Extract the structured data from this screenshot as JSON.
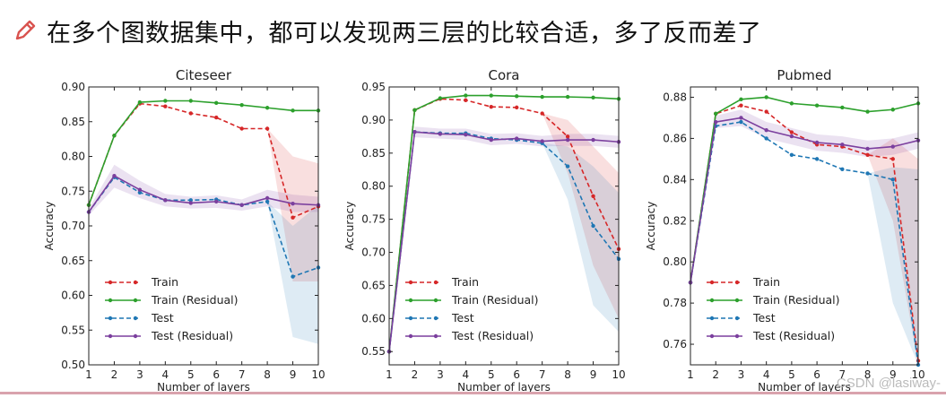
{
  "header": {
    "icon": "pencil-icon",
    "text": "在多个图数据集中，都可以发现两三层的比较合适，多了反而差了"
  },
  "watermark": "CSDN @lasiway-",
  "legend_labels": [
    "Train",
    "Train (Residual)",
    "Test",
    "Test (Residual)"
  ],
  "colors": {
    "train": "#d62728",
    "train_residual": "#2ca02c",
    "test": "#1f77b4",
    "test_residual": "#7b3f9e",
    "axis": "#222222"
  },
  "chart_data": [
    {
      "type": "line",
      "title": "Citeseer",
      "xlabel": "Number of layers",
      "ylabel": "Accuracy",
      "x": [
        1,
        2,
        3,
        4,
        5,
        6,
        7,
        8,
        9,
        10
      ],
      "xlim": [
        1,
        10
      ],
      "ylim": [
        0.5,
        0.9
      ],
      "yticks": [
        "0.50",
        "0.55",
        "0.60",
        "0.65",
        "0.70",
        "0.75",
        "0.80",
        "0.85",
        "0.90"
      ],
      "xticks": [
        "1",
        "2",
        "3",
        "4",
        "5",
        "6",
        "7",
        "8",
        "9",
        "10"
      ],
      "series": [
        {
          "name": "Train",
          "style": "dashed",
          "values": [
            0.73,
            0.83,
            0.876,
            0.872,
            0.862,
            0.856,
            0.84,
            0.84,
            0.712,
            0.728
          ]
        },
        {
          "name": "Train (Residual)",
          "style": "solid",
          "values": [
            0.73,
            0.83,
            0.878,
            0.88,
            0.88,
            0.877,
            0.874,
            0.87,
            0.866,
            0.866
          ]
        },
        {
          "name": "Test",
          "style": "dashed",
          "values": [
            0.72,
            0.77,
            0.748,
            0.737,
            0.737,
            0.738,
            0.73,
            0.735,
            0.627,
            0.64
          ]
        },
        {
          "name": "Test (Residual)",
          "style": "solid",
          "values": [
            0.72,
            0.772,
            0.752,
            0.737,
            0.733,
            0.735,
            0.73,
            0.74,
            0.732,
            0.73
          ]
        }
      ],
      "bands": [
        {
          "series": "Train",
          "x": [
            8,
            9,
            10
          ],
          "lower": [
            0.84,
            0.62,
            0.62
          ],
          "upper": [
            0.84,
            0.8,
            0.79
          ]
        },
        {
          "series": "Test",
          "x": [
            8,
            9,
            10
          ],
          "lower": [
            0.735,
            0.54,
            0.53
          ],
          "upper": [
            0.735,
            0.7,
            0.73
          ]
        },
        {
          "series": "Test (Residual)",
          "x": [
            1,
            2,
            3,
            4,
            5,
            6,
            7,
            8,
            9,
            10
          ],
          "lower": [
            0.715,
            0.755,
            0.74,
            0.728,
            0.725,
            0.726,
            0.722,
            0.728,
            0.72,
            0.72
          ],
          "upper": [
            0.725,
            0.788,
            0.765,
            0.746,
            0.742,
            0.744,
            0.738,
            0.752,
            0.745,
            0.742
          ]
        }
      ],
      "legend_position": "lower-left"
    },
    {
      "type": "line",
      "title": "Cora",
      "xlabel": "Number of layers",
      "ylabel": "Accuracy",
      "x": [
        1,
        2,
        3,
        4,
        5,
        6,
        7,
        8,
        9,
        10
      ],
      "xlim": [
        1,
        10
      ],
      "ylim": [
        0.53,
        0.95
      ],
      "yticks": [
        "0.55",
        "0.60",
        "0.65",
        "0.70",
        "0.75",
        "0.80",
        "0.85",
        "0.90",
        "0.95"
      ],
      "xticks": [
        "1",
        "2",
        "3",
        "4",
        "5",
        "6",
        "7",
        "8",
        "9",
        "10"
      ],
      "series": [
        {
          "name": "Train",
          "style": "dashed",
          "values": [
            0.55,
            0.915,
            0.932,
            0.93,
            0.92,
            0.919,
            0.91,
            0.875,
            0.785,
            0.705
          ]
        },
        {
          "name": "Train (Residual)",
          "style": "solid",
          "values": [
            0.55,
            0.915,
            0.933,
            0.937,
            0.937,
            0.936,
            0.935,
            0.935,
            0.934,
            0.932
          ]
        },
        {
          "name": "Test",
          "style": "dashed",
          "values": [
            0.55,
            0.882,
            0.88,
            0.88,
            0.872,
            0.87,
            0.865,
            0.83,
            0.74,
            0.69
          ]
        },
        {
          "name": "Test (Residual)",
          "style": "solid",
          "values": [
            0.55,
            0.882,
            0.879,
            0.878,
            0.87,
            0.872,
            0.868,
            0.87,
            0.87,
            0.867
          ]
        }
      ],
      "bands": [
        {
          "series": "Train",
          "x": [
            7,
            8,
            9,
            10
          ],
          "lower": [
            0.91,
            0.82,
            0.68,
            0.6
          ],
          "upper": [
            0.91,
            0.9,
            0.86,
            0.82
          ]
        },
        {
          "series": "Test",
          "x": [
            7,
            8,
            9,
            10
          ],
          "lower": [
            0.865,
            0.78,
            0.62,
            0.58
          ],
          "upper": [
            0.865,
            0.86,
            0.83,
            0.79
          ]
        },
        {
          "series": "Test (Residual)",
          "x": [
            2,
            3,
            4,
            5,
            6,
            7,
            8,
            9,
            10
          ],
          "lower": [
            0.874,
            0.872,
            0.87,
            0.862,
            0.864,
            0.86,
            0.861,
            0.861,
            0.858
          ],
          "upper": [
            0.89,
            0.887,
            0.887,
            0.879,
            0.88,
            0.876,
            0.879,
            0.879,
            0.876
          ]
        }
      ],
      "legend_position": "lower-left"
    },
    {
      "type": "line",
      "title": "Pubmed",
      "xlabel": "Number of layers",
      "ylabel": "Accuracy",
      "x": [
        1,
        2,
        3,
        4,
        5,
        6,
        7,
        8,
        9,
        10
      ],
      "xlim": [
        1,
        10
      ],
      "ylim": [
        0.75,
        0.885
      ],
      "yticks": [
        "0.76",
        "0.78",
        "0.80",
        "0.82",
        "0.84",
        "0.86",
        "0.88"
      ],
      "xticks": [
        "1",
        "2",
        "3",
        "4",
        "5",
        "6",
        "7",
        "8",
        "9",
        "10"
      ],
      "series": [
        {
          "name": "Train",
          "style": "dashed",
          "values": [
            0.79,
            0.872,
            0.876,
            0.873,
            0.863,
            0.857,
            0.856,
            0.852,
            0.85,
            0.752
          ]
        },
        {
          "name": "Train (Residual)",
          "style": "solid",
          "values": [
            0.79,
            0.872,
            0.879,
            0.88,
            0.877,
            0.876,
            0.875,
            0.873,
            0.874,
            0.877
          ]
        },
        {
          "name": "Test",
          "style": "dashed",
          "values": [
            0.79,
            0.866,
            0.868,
            0.86,
            0.852,
            0.85,
            0.845,
            0.843,
            0.84,
            0.75
          ]
        },
        {
          "name": "Test (Residual)",
          "style": "solid",
          "values": [
            0.79,
            0.868,
            0.87,
            0.864,
            0.861,
            0.858,
            0.857,
            0.855,
            0.856,
            0.859
          ]
        }
      ],
      "bands": [
        {
          "series": "Train",
          "x": [
            8,
            9,
            10
          ],
          "lower": [
            0.852,
            0.82,
            0.75
          ],
          "upper": [
            0.852,
            0.86,
            0.85
          ]
        },
        {
          "series": "Test",
          "x": [
            8,
            9,
            10
          ],
          "lower": [
            0.843,
            0.78,
            0.75
          ],
          "upper": [
            0.843,
            0.846,
            0.845
          ]
        },
        {
          "series": "Test (Residual)",
          "x": [
            2,
            3,
            4,
            5,
            6,
            7,
            8,
            9,
            10
          ],
          "lower": [
            0.865,
            0.866,
            0.86,
            0.857,
            0.854,
            0.853,
            0.851,
            0.852,
            0.855
          ],
          "upper": [
            0.871,
            0.874,
            0.868,
            0.865,
            0.862,
            0.861,
            0.859,
            0.86,
            0.863
          ]
        }
      ],
      "legend_position": "lower-left"
    }
  ]
}
